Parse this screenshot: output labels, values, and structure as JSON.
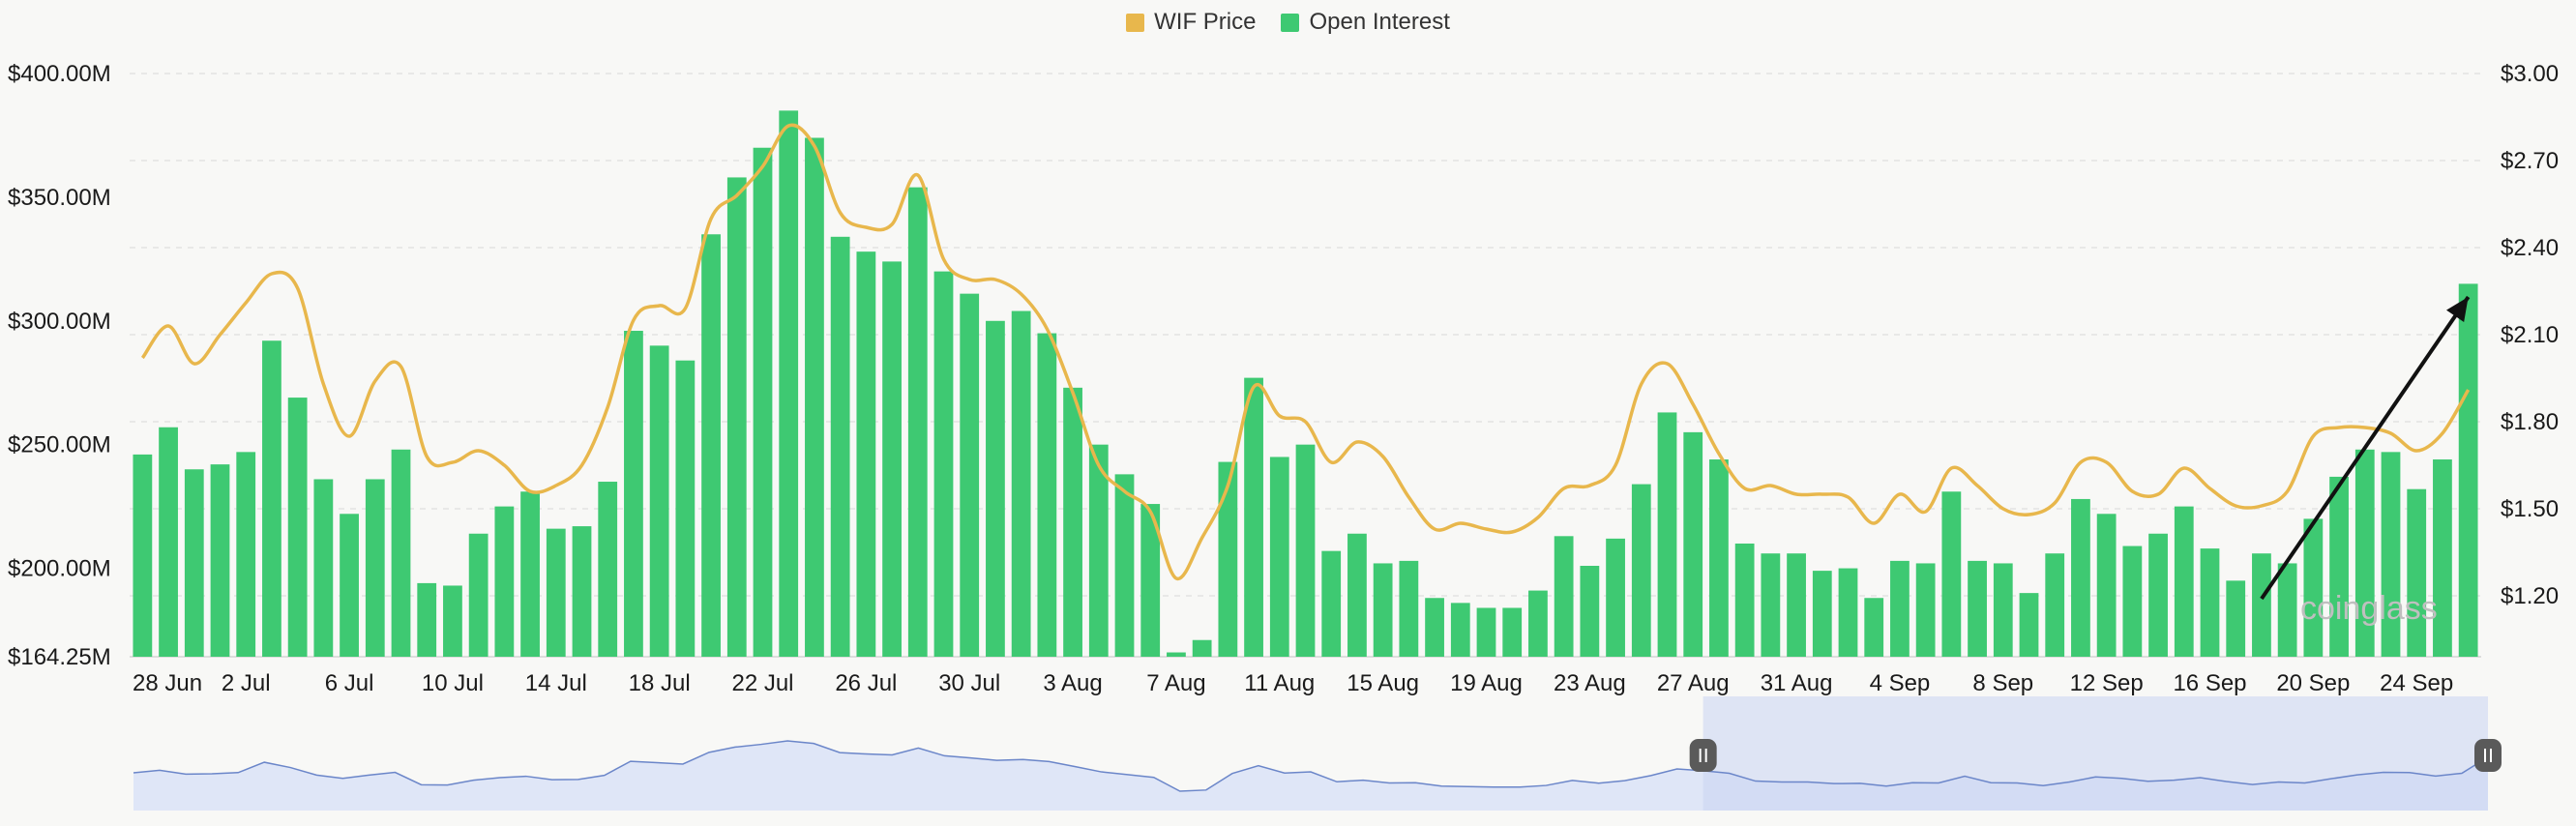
{
  "colors": {
    "price": "#e8b74c",
    "open_interest": "#3ec972",
    "grid": "#e2e2e2",
    "arrow": "#111111",
    "navigator_fill": "#dfe6f7",
    "navigator_line": "#6b86c9",
    "navigator_selected": "#c9d4f2"
  },
  "legend": [
    {
      "label": "WIF Price",
      "color": "#e8b74c"
    },
    {
      "label": "Open Interest",
      "color": "#3ec972"
    }
  ],
  "watermark": "coinglass",
  "chart_data": {
    "type": "bar",
    "series": [
      {
        "name": "Open Interest",
        "type": "bar",
        "axis": "left",
        "values": [
          246,
          257,
          240,
          242,
          247,
          292,
          269,
          236,
          222,
          236,
          248,
          194,
          193,
          214,
          225,
          231,
          216,
          217,
          235,
          296,
          290,
          284,
          335,
          358,
          370,
          385,
          374,
          334,
          328,
          324,
          354,
          320,
          311,
          300,
          304,
          295,
          273,
          250,
          238,
          226,
          166,
          171,
          243,
          277,
          245,
          250,
          207,
          214,
          202,
          203,
          188,
          186,
          184,
          184,
          191,
          213,
          201,
          212,
          234,
          263,
          255,
          244,
          210,
          206,
          206,
          199,
          200,
          188,
          203,
          202,
          231,
          203,
          202,
          190,
          206,
          228,
          222,
          209,
          214,
          225,
          208,
          195,
          206,
          202,
          220,
          237,
          248,
          247,
          232,
          244,
          315
        ]
      },
      {
        "name": "WIF Price",
        "type": "line",
        "axis": "right",
        "values": [
          2.02,
          2.13,
          2.0,
          2.1,
          2.21,
          2.31,
          2.26,
          1.93,
          1.75,
          1.94,
          1.99,
          1.68,
          1.66,
          1.7,
          1.65,
          1.56,
          1.58,
          1.65,
          1.85,
          2.15,
          2.2,
          2.19,
          2.5,
          2.58,
          2.68,
          2.82,
          2.75,
          2.52,
          2.47,
          2.48,
          2.65,
          2.36,
          2.29,
          2.29,
          2.24,
          2.12,
          1.9,
          1.65,
          1.56,
          1.49,
          1.26,
          1.4,
          1.58,
          1.92,
          1.82,
          1.8,
          1.66,
          1.73,
          1.68,
          1.54,
          1.43,
          1.45,
          1.43,
          1.42,
          1.47,
          1.57,
          1.58,
          1.65,
          1.93,
          2.0,
          1.86,
          1.69,
          1.57,
          1.58,
          1.55,
          1.55,
          1.54,
          1.45,
          1.55,
          1.49,
          1.64,
          1.58,
          1.5,
          1.48,
          1.52,
          1.66,
          1.66,
          1.56,
          1.55,
          1.64,
          1.57,
          1.51,
          1.51,
          1.56,
          1.75,
          1.78,
          1.78,
          1.76,
          1.7,
          1.76,
          1.91
        ]
      }
    ],
    "x_tick_labels": [
      "28 Jun",
      "2 Jul",
      "6 Jul",
      "10 Jul",
      "14 Jul",
      "18 Jul",
      "22 Jul",
      "26 Jul",
      "30 Jul",
      "3 Aug",
      "7 Aug",
      "11 Aug",
      "15 Aug",
      "19 Aug",
      "23 Aug",
      "27 Aug",
      "31 Aug",
      "4 Sep",
      "8 Sep",
      "12 Sep",
      "16 Sep",
      "20 Sep",
      "24 Sep"
    ],
    "y_left": {
      "ticks": [
        "$400.00M",
        "$350.00M",
        "$300.00M",
        "$250.00M",
        "$200.00M",
        "$164.25M"
      ],
      "tick_values": [
        400,
        350,
        300,
        250,
        200,
        164.25
      ],
      "range": [
        164.25,
        400
      ]
    },
    "y_right": {
      "ticks": [
        "$3.00",
        "$2.70",
        "$2.40",
        "$2.10",
        "$1.80",
        "$1.50",
        "$1.20"
      ],
      "tick_values": [
        3.0,
        2.7,
        2.4,
        2.1,
        1.8,
        1.5,
        1.2
      ],
      "range": [
        0.99,
        3.0
      ]
    },
    "annotation": {
      "type": "arrow",
      "from_index": 82,
      "from_value": 1.19,
      "to_index": 90,
      "to_value": 2.23
    },
    "navigator": {
      "selected_from_index": 60,
      "selected_to_index": 90
    },
    "grid": true,
    "legend_position": "top-center"
  }
}
